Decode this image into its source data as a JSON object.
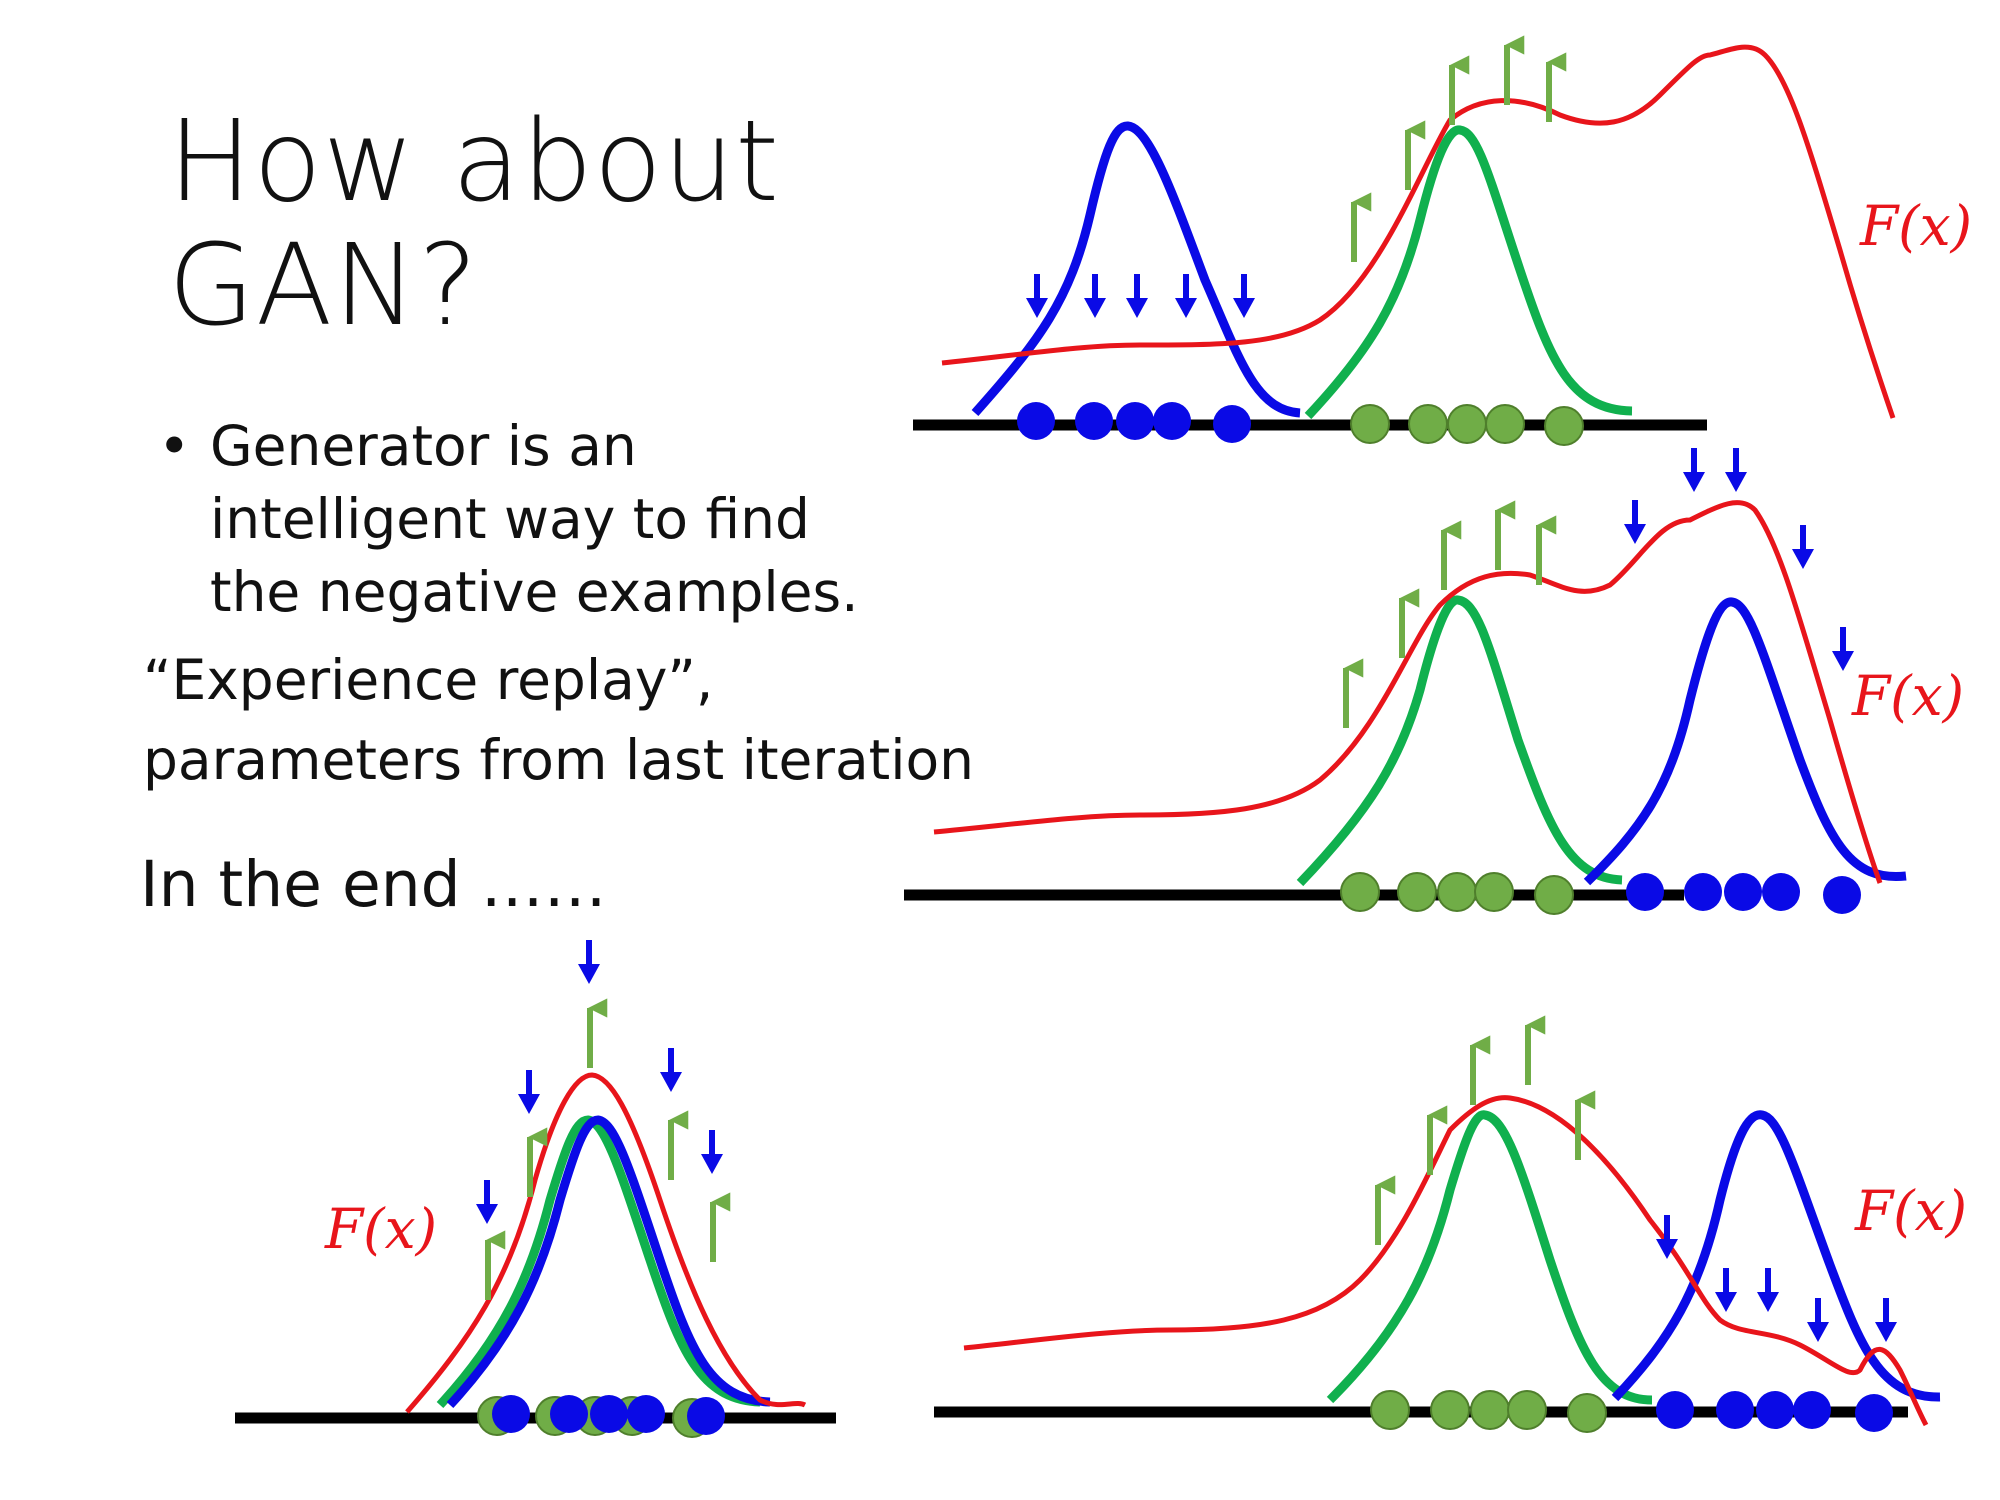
{
  "slide": {
    "title": "How about\nGAN?",
    "bullet_char": "•",
    "bullet_text": "Generator is an\nintelligent way to find\nthe negative examples.",
    "note_text": "“Experience replay”,\nparameters from last iteration",
    "end_text": "In the end ……"
  },
  "panels": {
    "top_right": {
      "function_label": "F(x)"
    },
    "middle_right": {
      "function_label": "F(x)"
    },
    "bottom_right": {
      "function_label": "F(x)"
    },
    "bottom_left": {
      "function_label": "F(x)"
    }
  },
  "colors": {
    "function_curve": "#e8151b",
    "generated_distribution": "#0a0ae6",
    "data_distribution": "#10b04e",
    "up_arrow": "#70ad47",
    "down_arrow": "#0a0ae6",
    "axis": "#000000"
  }
}
